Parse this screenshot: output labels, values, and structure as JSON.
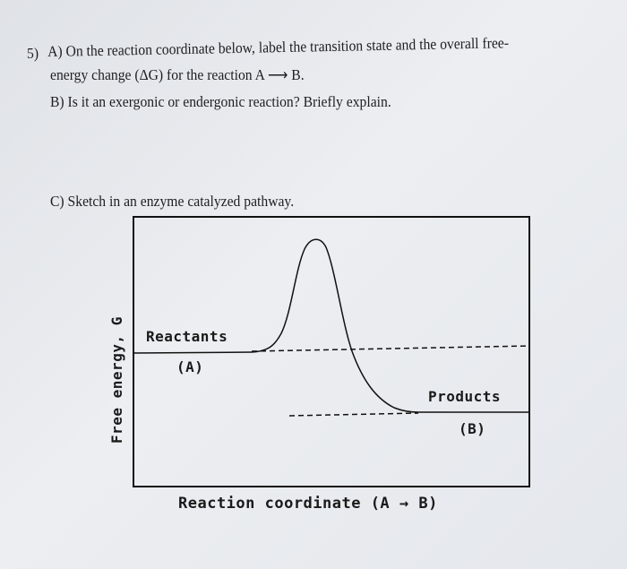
{
  "question": {
    "number": "5)",
    "part_a_line1": "A) On the reaction coordinate below, label the transition state and the overall free-",
    "part_a_line2": "energy change (ΔG) for the reaction A ⟶ B.",
    "part_b": "B) Is it an exergonic or endergonic reaction? Briefly explain.",
    "part_c": "C) Sketch in an enzyme catalyzed pathway."
  },
  "diagram": {
    "y_axis_label": "Free energy, G",
    "x_axis_label": "Reaction coordinate (A → B)",
    "reactants_label": "Reactants",
    "reactants_symbol": "(A)",
    "products_label": "Products",
    "products_symbol": "(B)"
  }
}
